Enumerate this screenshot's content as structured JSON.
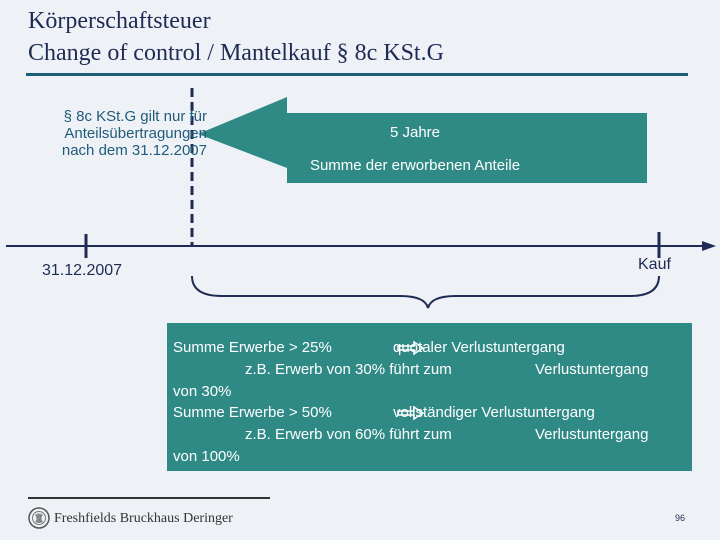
{
  "header": {
    "title_line1": "Körperschaftsteuer",
    "title_line2": "Change of control / Mantelkauf § 8c KSt.G"
  },
  "timeline": {
    "left_note": "§ 8c KSt.G gilt nur für Anteilsübertragungen nach dem 31.12.2007",
    "arrow_label_1": "5 Jahre",
    "arrow_label_2": "Summe der erworbenen Anteile",
    "left_date": "31.12.2007",
    "right_label": "Kauf"
  },
  "infobox": {
    "line1a": "Summe Erwerbe > 25%",
    "line1b": "quotaler Verlustuntergang",
    "line2a": "z.B. Erwerb von 30% führt zum",
    "line2b": "Verlustuntergang",
    "line3": "von 30%",
    "line4a": "Summe Erwerbe > 50%",
    "line4b": "vollständiger Verlustuntergang",
    "line5a": "z.B. Erwerb von 60% führt zum",
    "line5b": "Verlustuntergang",
    "line6": "von 100%"
  },
  "footer": {
    "firm_name": "Freshfields Bruckhaus Deringer",
    "page_number": "96"
  },
  "colors": {
    "background": "#eef2f6",
    "title": "#1f2b55",
    "accent": "#1f5c7a",
    "arrow_fill": "#2f8a86",
    "box_fill": "#2f8a86"
  }
}
